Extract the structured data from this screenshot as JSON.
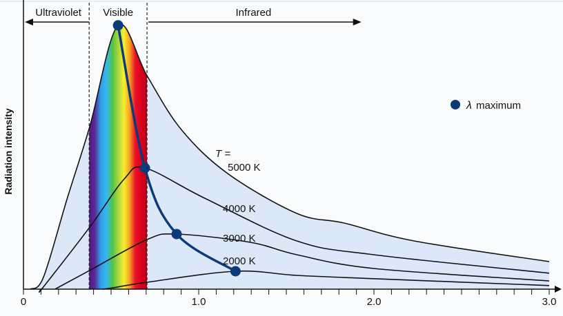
{
  "chart_data": {
    "type": "line",
    "title": "",
    "xlabel": "",
    "ylabel": "Radiation intensity",
    "xlim": [
      0,
      3.0
    ],
    "ylim": [
      0,
      100
    ],
    "x_tick_labels": [
      "0",
      "1.0",
      "2.0",
      "3.0"
    ],
    "x_minor_tick_step": 0.1,
    "regions": [
      {
        "label": "Ultraviolet",
        "from": 0,
        "to": 0.375
      },
      {
        "label": "Visible",
        "from": 0.375,
        "to": 0.705
      },
      {
        "label": "Infrared",
        "from": 0.705,
        "to": 1.92
      }
    ],
    "temperature_prefix": "T =",
    "series": [
      {
        "name": "5000 K",
        "points": [
          [
            0.04,
            0
          ],
          [
            0.114,
            4.3
          ],
          [
            0.25,
            33
          ],
          [
            0.378,
            59
          ],
          [
            0.54,
            95.8
          ],
          [
            0.705,
            77.5
          ],
          [
            0.9,
            58
          ],
          [
            1.165,
            42
          ],
          [
            1.56,
            27.5
          ],
          [
            1.83,
            24
          ],
          [
            2.23,
            17.5
          ],
          [
            3.0,
            10
          ]
        ]
      },
      {
        "name": "4000 K",
        "points": [
          [
            0.1,
            0
          ],
          [
            0.114,
            0.8
          ],
          [
            0.378,
            22.5
          ],
          [
            0.575,
            40
          ],
          [
            0.693,
            44
          ],
          [
            1.035,
            33
          ],
          [
            1.56,
            17.5
          ],
          [
            2.0,
            12.5
          ],
          [
            3.0,
            5.8
          ]
        ]
      },
      {
        "name": "3000 K",
        "points": [
          [
            0.18,
            0
          ],
          [
            0.378,
            6.8
          ],
          [
            0.705,
            18
          ],
          [
            0.874,
            20
          ],
          [
            1.295,
            17
          ],
          [
            1.56,
            12.5
          ],
          [
            2.0,
            7.5
          ],
          [
            3.0,
            3
          ]
        ]
      },
      {
        "name": "2000 K",
        "points": [
          [
            0.45,
            0
          ],
          [
            0.51,
            0.5
          ],
          [
            0.705,
            2.5
          ],
          [
            1.21,
            6.5
          ],
          [
            1.56,
            5
          ],
          [
            2.0,
            3.8
          ],
          [
            3.0,
            1.3
          ]
        ]
      }
    ],
    "maxima": {
      "label": "maximum",
      "symbol": "λ",
      "points": [
        [
          0.54,
          95.8
        ],
        [
          0.693,
          44
        ],
        [
          0.874,
          20
        ],
        [
          1.21,
          6.5
        ]
      ]
    },
    "colors": {
      "curve": "#111111",
      "maxima": "#0d3a78",
      "fill": "#dce8f8",
      "spectrum": [
        "#4a1a7a",
        "#5b2a9a",
        "#2e9ee8",
        "#36b8f0",
        "#4cc44c",
        "#a8d43a",
        "#f6f030",
        "#f5a020",
        "#e8102a",
        "#d8001c",
        "#b80018"
      ]
    },
    "legend_position": "right"
  }
}
